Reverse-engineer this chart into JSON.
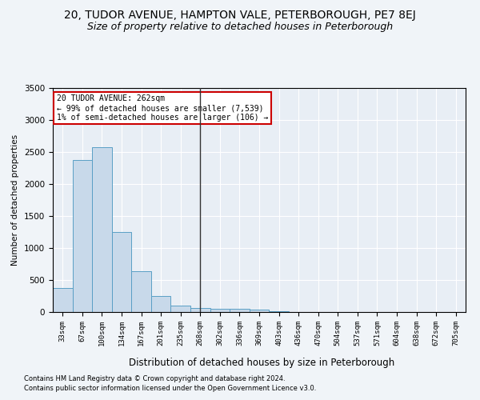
{
  "title1": "20, TUDOR AVENUE, HAMPTON VALE, PETERBOROUGH, PE7 8EJ",
  "title2": "Size of property relative to detached houses in Peterborough",
  "xlabel": "Distribution of detached houses by size in Peterborough",
  "ylabel": "Number of detached properties",
  "footnote1": "Contains HM Land Registry data © Crown copyright and database right 2024.",
  "footnote2": "Contains public sector information licensed under the Open Government Licence v3.0.",
  "bin_labels": [
    "33sqm",
    "67sqm",
    "100sqm",
    "134sqm",
    "167sqm",
    "201sqm",
    "235sqm",
    "268sqm",
    "302sqm",
    "336sqm",
    "369sqm",
    "403sqm",
    "436sqm",
    "470sqm",
    "504sqm",
    "537sqm",
    "571sqm",
    "604sqm",
    "638sqm",
    "672sqm",
    "705sqm"
  ],
  "bar_values": [
    380,
    2380,
    2580,
    1250,
    640,
    250,
    100,
    60,
    55,
    45,
    35,
    10,
    5,
    3,
    2,
    1,
    1,
    0,
    0,
    0,
    0
  ],
  "bar_color": "#c8d9ea",
  "bar_edge_color": "#5a9fc5",
  "vline_x_index": 7,
  "vline_color": "#333333",
  "annotation_line1": "20 TUDOR AVENUE: 262sqm",
  "annotation_line2": "← 99% of detached houses are smaller (7,539)",
  "annotation_line3": "1% of semi-detached houses are larger (106) →",
  "annotation_box_color": "#ffffff",
  "annotation_box_edge": "#cc0000",
  "ylim": [
    0,
    3500
  ],
  "background_color": "#e8eef5",
  "grid_color": "#ffffff",
  "title1_fontsize": 10,
  "title2_fontsize": 9,
  "fig_bg": "#f0f4f8"
}
